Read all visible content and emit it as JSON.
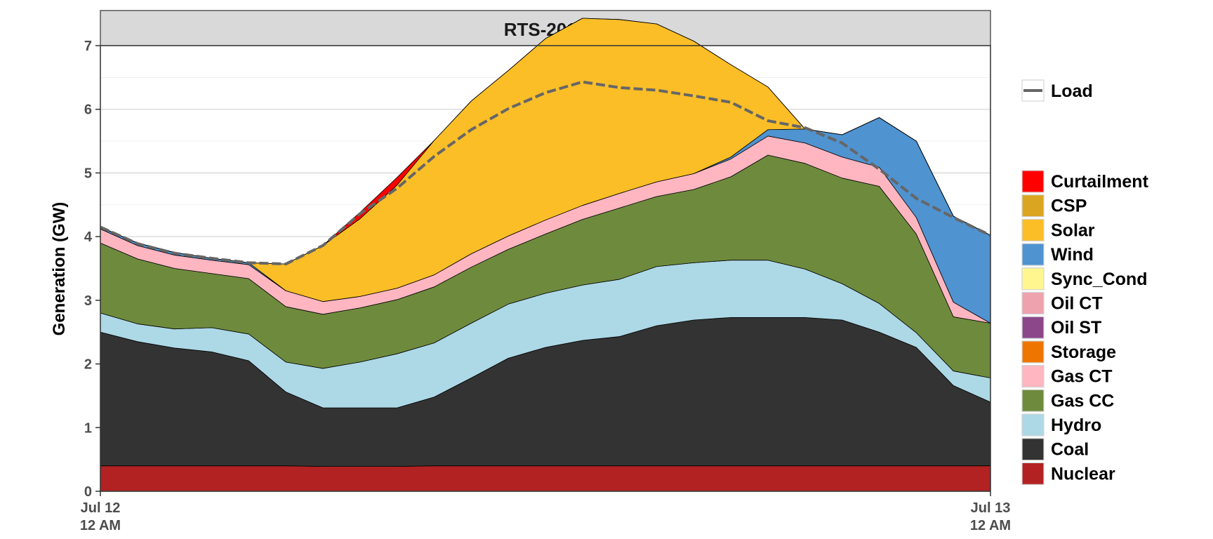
{
  "chart_data": {
    "type": "area",
    "title": "RTS-2016",
    "xlabel": "",
    "ylabel": "Generation (GW)",
    "ylim": [
      0,
      7
    ],
    "yticks": [
      0,
      1,
      2,
      3,
      4,
      5,
      6,
      7
    ],
    "xlim": [
      "Jul 12 12 AM",
      "Jul 13 12 AM"
    ],
    "xticks": [
      {
        "line1": "Jul 12",
        "line2": "12 AM",
        "hour": 0
      },
      {
        "line1": "Jul 13",
        "line2": "12 AM",
        "hour": 24
      }
    ],
    "grid": true,
    "legend_position": "right",
    "hours": [
      0,
      1,
      2,
      3,
      4,
      5,
      6,
      7,
      8,
      9,
      10,
      11,
      12,
      13,
      14,
      15,
      16,
      17,
      18,
      19,
      20,
      21,
      22,
      23,
      24
    ],
    "series": [
      {
        "name": "Nuclear",
        "color": "#b22222",
        "values": [
          0.4,
          0.4,
          0.4,
          0.4,
          0.4,
          0.4,
          0.39,
          0.39,
          0.39,
          0.4,
          0.4,
          0.4,
          0.4,
          0.4,
          0.4,
          0.4,
          0.4,
          0.4,
          0.4,
          0.4,
          0.4,
          0.4,
          0.4,
          0.4,
          0.4
        ]
      },
      {
        "name": "Coal",
        "color": "#333333",
        "values": [
          2.1,
          1.95,
          1.85,
          1.79,
          1.65,
          1.16,
          0.92,
          0.92,
          0.92,
          1.08,
          1.38,
          1.69,
          1.86,
          1.97,
          2.03,
          2.2,
          2.29,
          2.33,
          2.33,
          2.33,
          2.29,
          2.1,
          1.86,
          1.26,
          1.0
        ]
      },
      {
        "name": "Hydro",
        "color": "#add8e6",
        "values": [
          0.3,
          0.28,
          0.3,
          0.38,
          0.42,
          0.47,
          0.62,
          0.72,
          0.85,
          0.85,
          0.86,
          0.85,
          0.85,
          0.87,
          0.9,
          0.93,
          0.9,
          0.9,
          0.9,
          0.76,
          0.57,
          0.45,
          0.23,
          0.23,
          0.38
        ]
      },
      {
        "name": "Gas CC",
        "color": "#6e8b3d",
        "values": [
          1.1,
          1.02,
          0.95,
          0.85,
          0.87,
          0.87,
          0.85,
          0.85,
          0.85,
          0.88,
          0.88,
          0.86,
          0.93,
          1.03,
          1.12,
          1.1,
          1.15,
          1.31,
          1.65,
          1.66,
          1.66,
          1.84,
          1.55,
          0.85,
          0.86
        ]
      },
      {
        "name": "Gas CT",
        "color": "#ffb6c1",
        "values": [
          0.22,
          0.21,
          0.21,
          0.21,
          0.22,
          0.25,
          0.2,
          0.18,
          0.18,
          0.19,
          0.21,
          0.21,
          0.22,
          0.22,
          0.23,
          0.23,
          0.25,
          0.28,
          0.3,
          0.32,
          0.33,
          0.3,
          0.26,
          0.23,
          0.0
        ]
      },
      {
        "name": "Wind",
        "color": "#4f93d0",
        "values": [
          0.03,
          0.04,
          0.04,
          0.03,
          0.03,
          0.0,
          0.0,
          0.0,
          0.0,
          0.0,
          0.0,
          0.0,
          0.0,
          0.0,
          0.0,
          0.0,
          0.0,
          0.03,
          0.1,
          0.22,
          0.35,
          0.78,
          1.2,
          1.35,
          1.38
        ]
      },
      {
        "name": "Solar",
        "color": "#fbbe27",
        "values": [
          0.0,
          0.0,
          0.0,
          0.0,
          0.0,
          0.42,
          0.88,
          1.22,
          1.62,
          2.11,
          2.4,
          2.6,
          2.85,
          2.94,
          2.73,
          2.48,
          2.08,
          1.45,
          0.67,
          0.0,
          0.0,
          0.0,
          0.0,
          0.0,
          0.0
        ]
      },
      {
        "name": "Curtailment",
        "color": "#ff0000",
        "values": [
          0.0,
          0.0,
          0.0,
          0.0,
          0.0,
          0.0,
          0.0,
          0.1,
          0.12,
          0.0,
          0.0,
          0.0,
          0.0,
          0.0,
          0.0,
          0.0,
          0.0,
          0.0,
          0.0,
          0.0,
          0.0,
          0.0,
          0.0,
          0.0,
          0.0
        ]
      }
    ],
    "load": {
      "name": "Load",
      "color": "#666666",
      "values": [
        4.15,
        3.89,
        3.74,
        3.66,
        3.59,
        3.57,
        3.86,
        4.36,
        4.76,
        5.26,
        5.68,
        6.01,
        6.26,
        6.43,
        6.34,
        6.3,
        6.21,
        6.11,
        5.82,
        5.71,
        5.47,
        5.06,
        4.6,
        4.3,
        4.02
      ]
    },
    "legend_load": {
      "label": "Load",
      "color": "#666666"
    },
    "legend": [
      {
        "label": "Curtailment",
        "color": "#ff0000"
      },
      {
        "label": "CSP",
        "color": "#daa520"
      },
      {
        "label": "Solar",
        "color": "#fbbe27"
      },
      {
        "label": "Wind",
        "color": "#4f93d0"
      },
      {
        "label": "Sync_Cond",
        "color": "#fff68f"
      },
      {
        "label": "Oil CT",
        "color": "#eea2ad"
      },
      {
        "label": "Oil ST",
        "color": "#8b4789"
      },
      {
        "label": "Storage",
        "color": "#ee7600"
      },
      {
        "label": "Gas CT",
        "color": "#ffb6c1"
      },
      {
        "label": "Gas CC",
        "color": "#6e8b3d"
      },
      {
        "label": "Hydro",
        "color": "#add8e6"
      },
      {
        "label": "Coal",
        "color": "#333333"
      },
      {
        "label": "Nuclear",
        "color": "#b22222"
      }
    ]
  }
}
